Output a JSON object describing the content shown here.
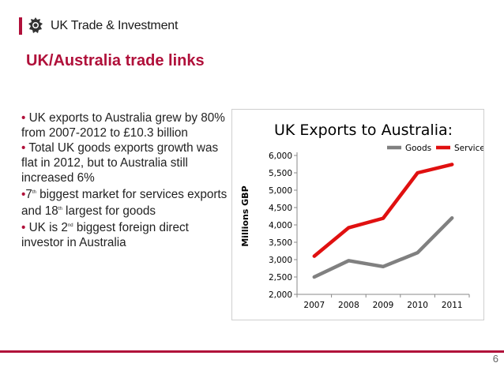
{
  "header": {
    "brand": "UK Trade & Investment"
  },
  "slide": {
    "title": "UK/Australia trade links",
    "page_number": "6"
  },
  "bullets": {
    "b1": {
      "marker": "•",
      "text": " UK exports to Australia grew by 80% from 2007-2012 to £10.3 billion"
    },
    "b2": {
      "marker": "•",
      "text": " Total UK goods exports growth was flat in 2012, but to Australia still increased 6%"
    },
    "b3": {
      "marker": "•",
      "p1": "7",
      "s1": "th",
      "p2": " biggest market for services exports and 18",
      "s2": "th",
      "p3": " largest for goods"
    },
    "b4": {
      "marker": "•",
      "p1": " UK is 2",
      "s1": "nd",
      "p2": " biggest foreign direct investor in Australia"
    }
  },
  "chart_data": {
    "type": "line",
    "title": "UK Exports to Australia:",
    "ylabel": "Millions GBP",
    "xlabel": "",
    "categories": [
      "2007",
      "2008",
      "2009",
      "2010",
      "2011"
    ],
    "ylim": [
      2000,
      6000
    ],
    "yticks": [
      2000,
      2500,
      3000,
      3500,
      4000,
      4500,
      5000,
      5500,
      6000
    ],
    "ytick_labels": [
      "2,000",
      "2,500",
      "3,000",
      "3,500",
      "4,000",
      "4,500",
      "5,000",
      "5,500",
      "6,000"
    ],
    "legend_position": "top-right",
    "grid": false,
    "series": [
      {
        "name": "Goods",
        "color": "#808080",
        "values": [
          2500,
          2970,
          2800,
          3200,
          4200
        ]
      },
      {
        "name": "Services",
        "color": "#e01010",
        "values": [
          3100,
          3920,
          4190,
          5500,
          5740
        ]
      }
    ]
  }
}
